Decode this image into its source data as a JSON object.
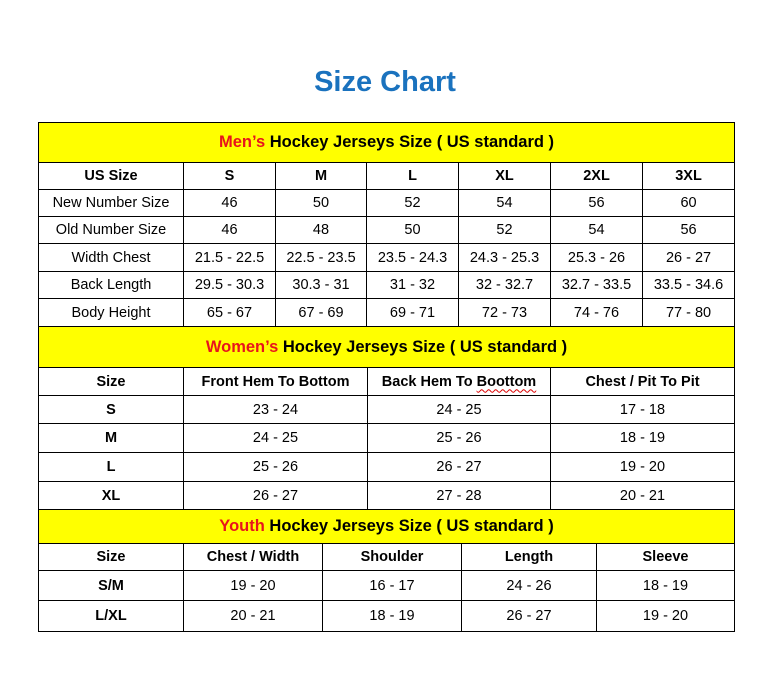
{
  "title": "Size Chart",
  "colors": {
    "title": "#1a72be",
    "header_bg": "#ffff00",
    "accent": "#e8141c"
  },
  "men": {
    "accent": "Men’s",
    "heading": " Hockey Jerseys Size ( US standard )",
    "columns": [
      "US Size",
      "S",
      "M",
      "L",
      "XL",
      "2XL",
      "3XL"
    ],
    "rows": [
      [
        "New Number Size",
        "46",
        "50",
        "52",
        "54",
        "56",
        "60"
      ],
      [
        "Old Number Size",
        "46",
        "48",
        "50",
        "52",
        "54",
        "56"
      ],
      [
        "Width Chest",
        "21.5 - 22.5",
        "22.5 - 23.5",
        "23.5 - 24.3",
        "24.3 - 25.3",
        "25.3 - 26",
        "26 - 27"
      ],
      [
        "Back Length",
        "29.5 - 30.3",
        "30.3 - 31",
        "31 - 32",
        "32 - 32.7",
        "32.7 - 33.5",
        "33.5 - 34.6"
      ],
      [
        "Body Height",
        "65 - 67",
        "67 - 69",
        "69 - 71",
        "72 - 73",
        "74 - 76",
        "77 - 80"
      ]
    ]
  },
  "women": {
    "accent": "Women’s",
    "heading": " Hockey Jerseys Size ( US standard )",
    "columns": [
      "Size",
      "Front Hem To Bottom",
      "Back Hem To Boottom",
      "Chest / Pit To Pit"
    ],
    "rows": [
      [
        "S",
        "23 - 24",
        "24 - 25",
        "17 - 18"
      ],
      [
        "M",
        "24 - 25",
        "25 - 26",
        "18 - 19"
      ],
      [
        "L",
        "25 - 26",
        "26 - 27",
        "19 - 20"
      ],
      [
        "XL",
        "26 - 27",
        "27 - 28",
        "20 - 21"
      ]
    ]
  },
  "youth": {
    "accent": "Youth",
    "heading": " Hockey Jerseys Size ( US standard )",
    "columns": [
      "Size",
      "Chest / Width",
      "Shoulder",
      "Length",
      "Sleeve"
    ],
    "rows": [
      [
        "S/M",
        "19 - 20",
        "16 - 17",
        "24 - 26",
        "18 - 19"
      ],
      [
        "L/XL",
        "20 - 21",
        "18 - 19",
        "26 - 27",
        "19 - 20"
      ]
    ]
  }
}
